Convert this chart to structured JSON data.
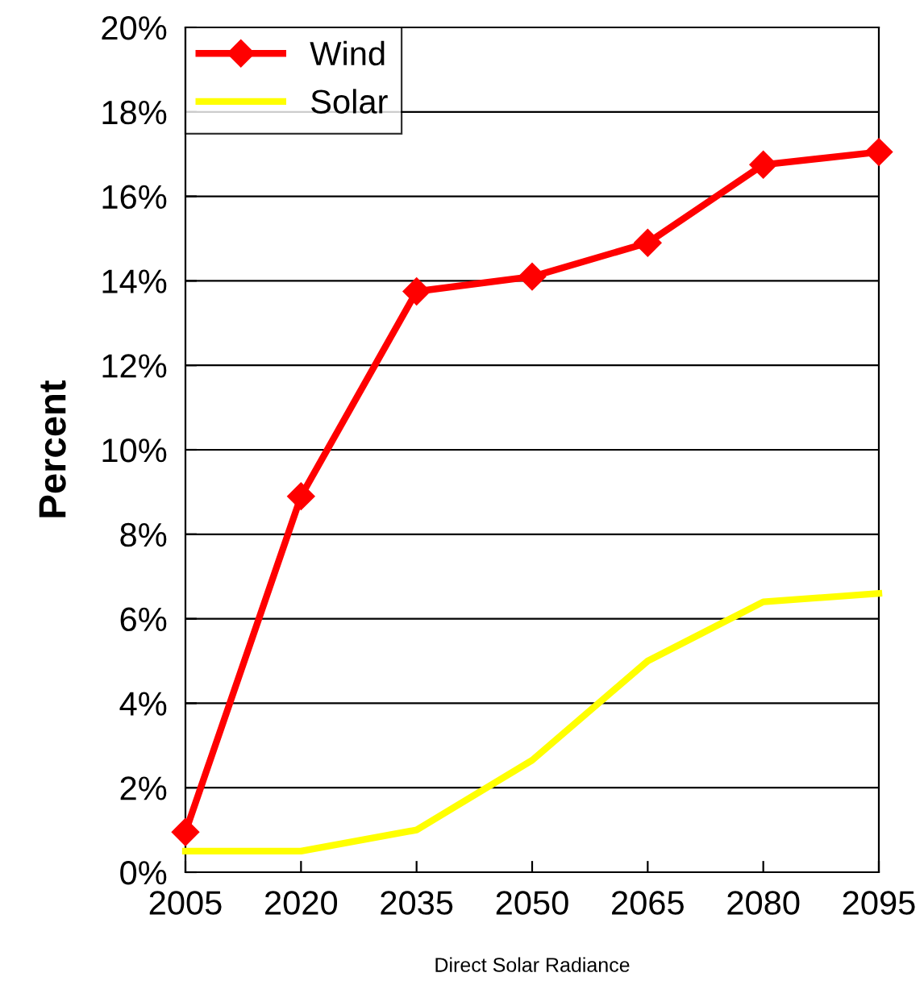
{
  "chart_data": {
    "type": "line",
    "xlabel": "Direct Solar Radiance",
    "ylabel": "Percent",
    "categories": [
      "2005",
      "2020",
      "2035",
      "2050",
      "2065",
      "2080",
      "2095"
    ],
    "series": [
      {
        "name": "Wind",
        "color": "#ff0000",
        "marker": "diamond",
        "values": [
          0.95,
          8.9,
          13.75,
          14.1,
          14.9,
          16.75,
          17.05
        ]
      },
      {
        "name": "Solar",
        "color": "#ffff00",
        "marker": "none",
        "values": [
          0.5,
          0.5,
          1.0,
          2.65,
          5.0,
          6.4,
          6.6
        ]
      }
    ],
    "ylim": [
      0,
      20
    ],
    "yticks": [
      {
        "value": 0,
        "label": "0%"
      },
      {
        "value": 2,
        "label": "2%"
      },
      {
        "value": 4,
        "label": "4%"
      },
      {
        "value": 6,
        "label": "6%"
      },
      {
        "value": 8,
        "label": "8%"
      },
      {
        "value": 10,
        "label": "10%"
      },
      {
        "value": 12,
        "label": "12%"
      },
      {
        "value": 14,
        "label": "14%"
      },
      {
        "value": 16,
        "label": "16%"
      },
      {
        "value": 18,
        "label": "18%"
      },
      {
        "value": 20,
        "label": "20%"
      }
    ],
    "grid": "y",
    "legend": "top left"
  }
}
